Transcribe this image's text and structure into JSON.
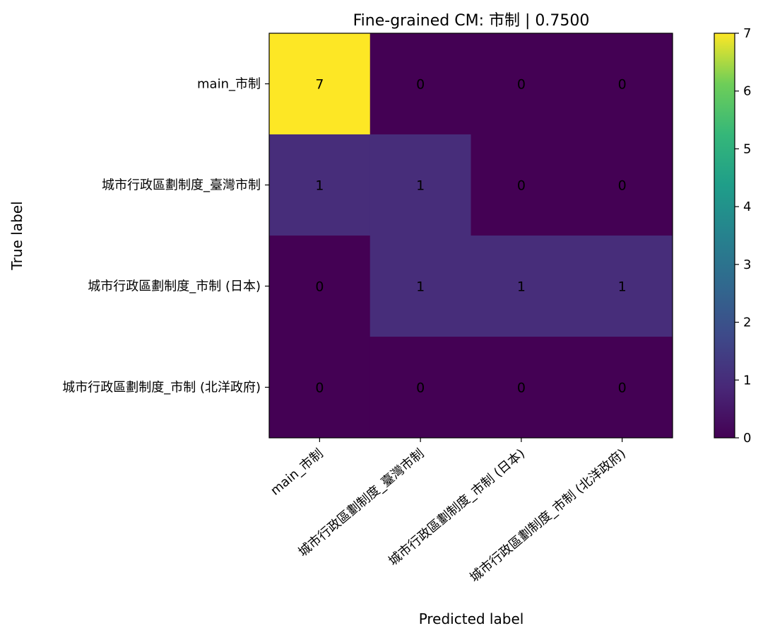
{
  "chart_data": {
    "type": "heatmap",
    "title": "Fine-grained CM: 市制 | 0.7500",
    "xlabel": "Predicted label",
    "ylabel": "True label",
    "row_labels": [
      "main_市制",
      "城市行政區劃制度_臺灣市制",
      "城市行政區劃制度_市制 (日本)",
      "城市行政區劃制度_市制 (北洋政府)"
    ],
    "col_labels": [
      "main_市制",
      "城市行政區劃制度_臺灣市制",
      "城市行政區劃制度_市制 (日本)",
      "城市行政區劃制度_市制 (北洋政府)"
    ],
    "matrix": [
      [
        7,
        0,
        0,
        0
      ],
      [
        1,
        1,
        0,
        0
      ],
      [
        0,
        1,
        1,
        1
      ],
      [
        0,
        0,
        0,
        0
      ]
    ],
    "colorbar": {
      "range": [
        0,
        7
      ],
      "ticks": [
        "0",
        "1",
        "2",
        "3",
        "4",
        "5",
        "6",
        "7"
      ],
      "colormap": "viridis"
    },
    "text_colors": {
      "on_dark": "#fde725",
      "on_light": "#440154"
    }
  }
}
